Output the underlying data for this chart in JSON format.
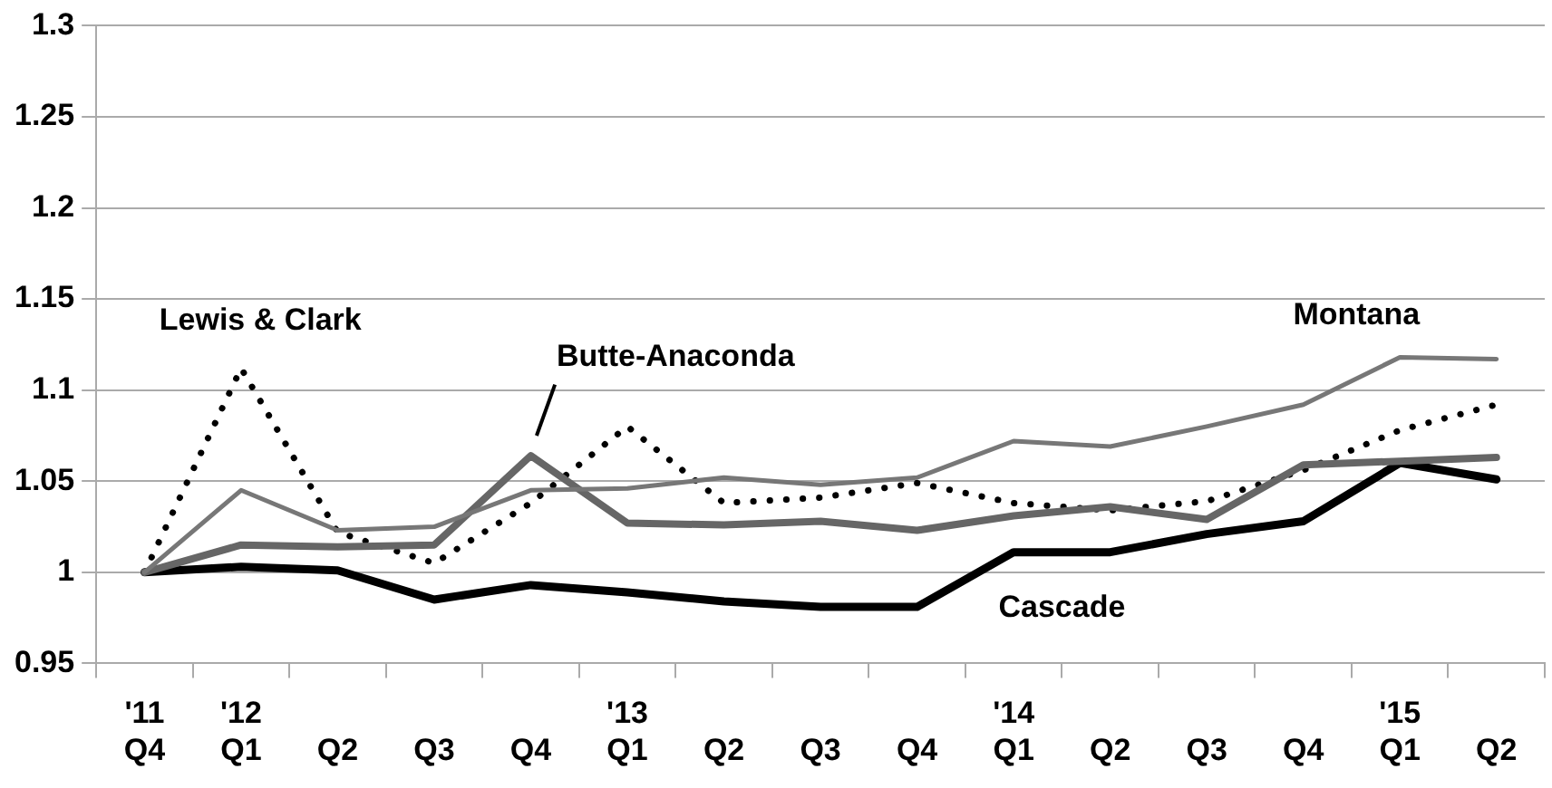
{
  "chart_data": {
    "type": "line",
    "categories": [
      "'11\nQ4",
      "'12\nQ1",
      "Q2",
      "Q3",
      "Q4",
      "'13\nQ1",
      "Q2",
      "Q3",
      "Q4",
      "'14\nQ1",
      "Q2",
      "Q3",
      "Q4",
      "'15\nQ1",
      "Q2"
    ],
    "series": [
      {
        "name": "Montana",
        "color": "#777777",
        "values": [
          1.0,
          1.045,
          1.023,
          1.025,
          1.045,
          1.046,
          1.052,
          1.048,
          1.052,
          1.072,
          1.069,
          1.08,
          1.092,
          1.118,
          1.117
        ]
      },
      {
        "name": "Butte-Anaconda",
        "color": "#666666",
        "values": [
          1.0,
          1.015,
          1.014,
          1.015,
          1.064,
          1.027,
          1.026,
          1.028,
          1.023,
          1.031,
          1.036,
          1.029,
          1.059,
          1.061,
          1.063
        ]
      },
      {
        "name": "Lewis & Clark",
        "color": "#000000",
        "line_style": "dotted",
        "values": [
          1.0,
          1.112,
          1.022,
          1.005,
          1.038,
          1.08,
          1.038,
          1.041,
          1.049,
          1.038,
          1.034,
          1.039,
          1.056,
          1.078,
          1.092
        ]
      },
      {
        "name": "Cascade",
        "color": "#000000",
        "values": [
          1.0,
          1.003,
          1.001,
          0.985,
          0.993,
          0.989,
          0.984,
          0.981,
          0.981,
          1.011,
          1.011,
          1.021,
          1.028,
          1.06,
          1.051
        ]
      }
    ],
    "ylim": [
      0.95,
      1.3
    ],
    "yticks": [
      0.95,
      1,
      1.05,
      1.1,
      1.15,
      1.2,
      1.25,
      1.3
    ],
    "grid": "y",
    "legend": false,
    "marker": "none"
  }
}
